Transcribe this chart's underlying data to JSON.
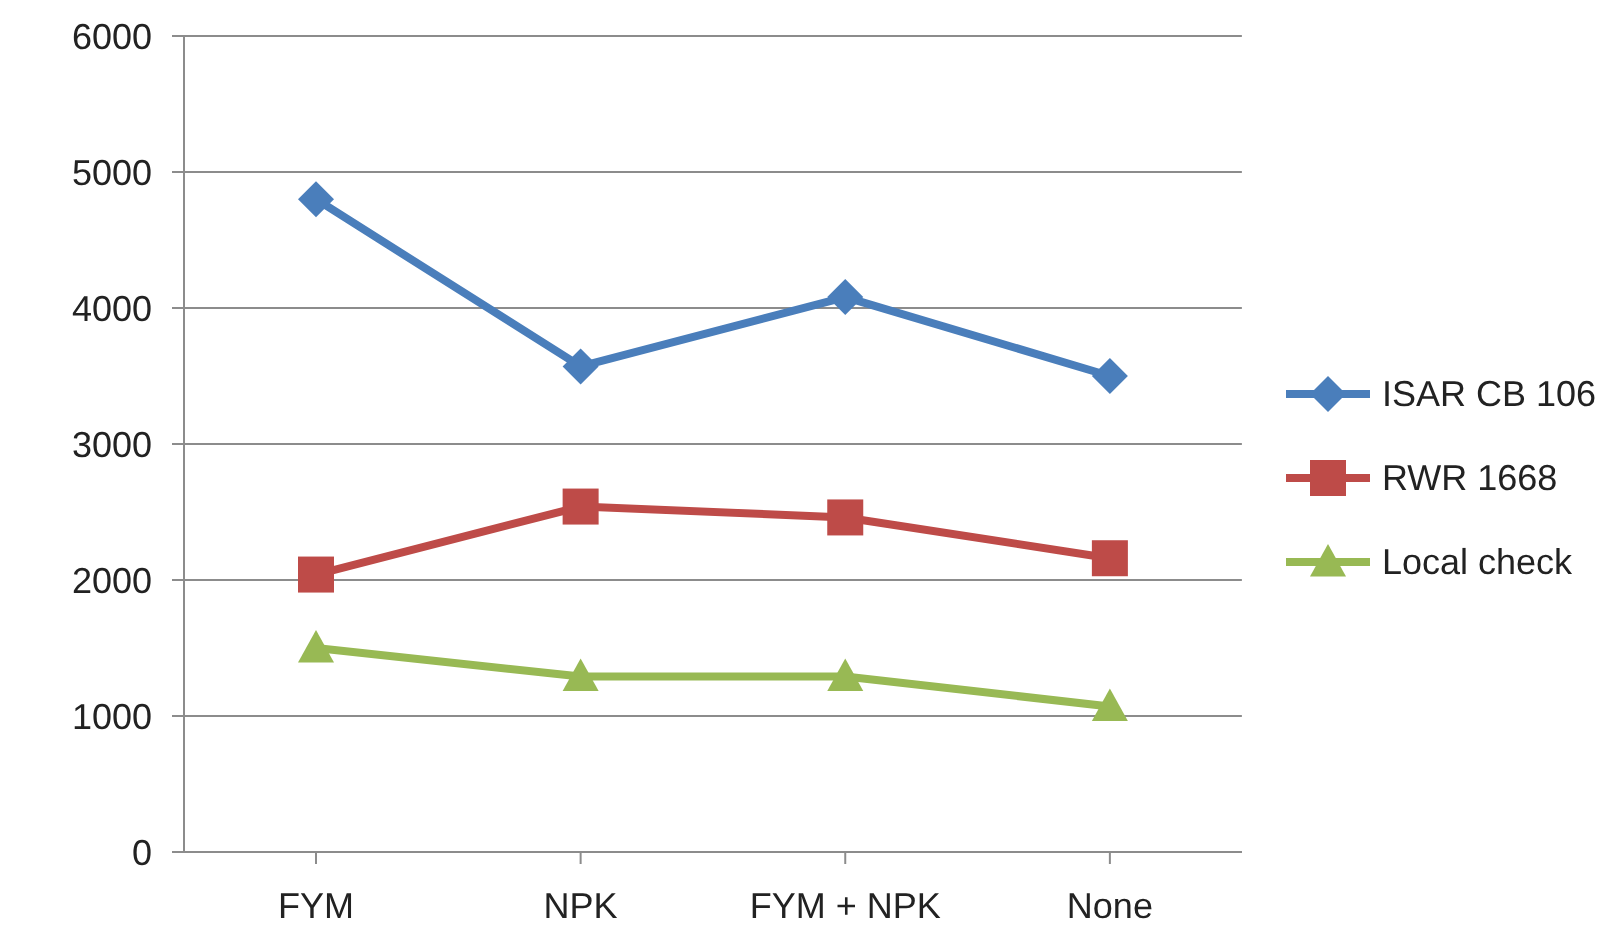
{
  "chart_data": {
    "type": "line",
    "categories": [
      "FYM",
      "NPK",
      "FYM + NPK",
      "None"
    ],
    "series": [
      {
        "name": "ISAR CB 106",
        "color": "#4a7ebb",
        "marker": "diamond",
        "values": [
          4800,
          3570,
          4080,
          3500
        ]
      },
      {
        "name": "RWR 1668",
        "color": "#be4b48",
        "marker": "square",
        "values": [
          2040,
          2540,
          2460,
          2160
        ]
      },
      {
        "name": "Local check",
        "color": "#98b954",
        "marker": "triangle",
        "values": [
          1500,
          1290,
          1290,
          1070
        ]
      }
    ],
    "ylim": [
      0,
      6000
    ],
    "yticks": [
      0,
      1000,
      2000,
      3000,
      4000,
      5000,
      6000
    ],
    "grid": "y",
    "legend": "right"
  }
}
